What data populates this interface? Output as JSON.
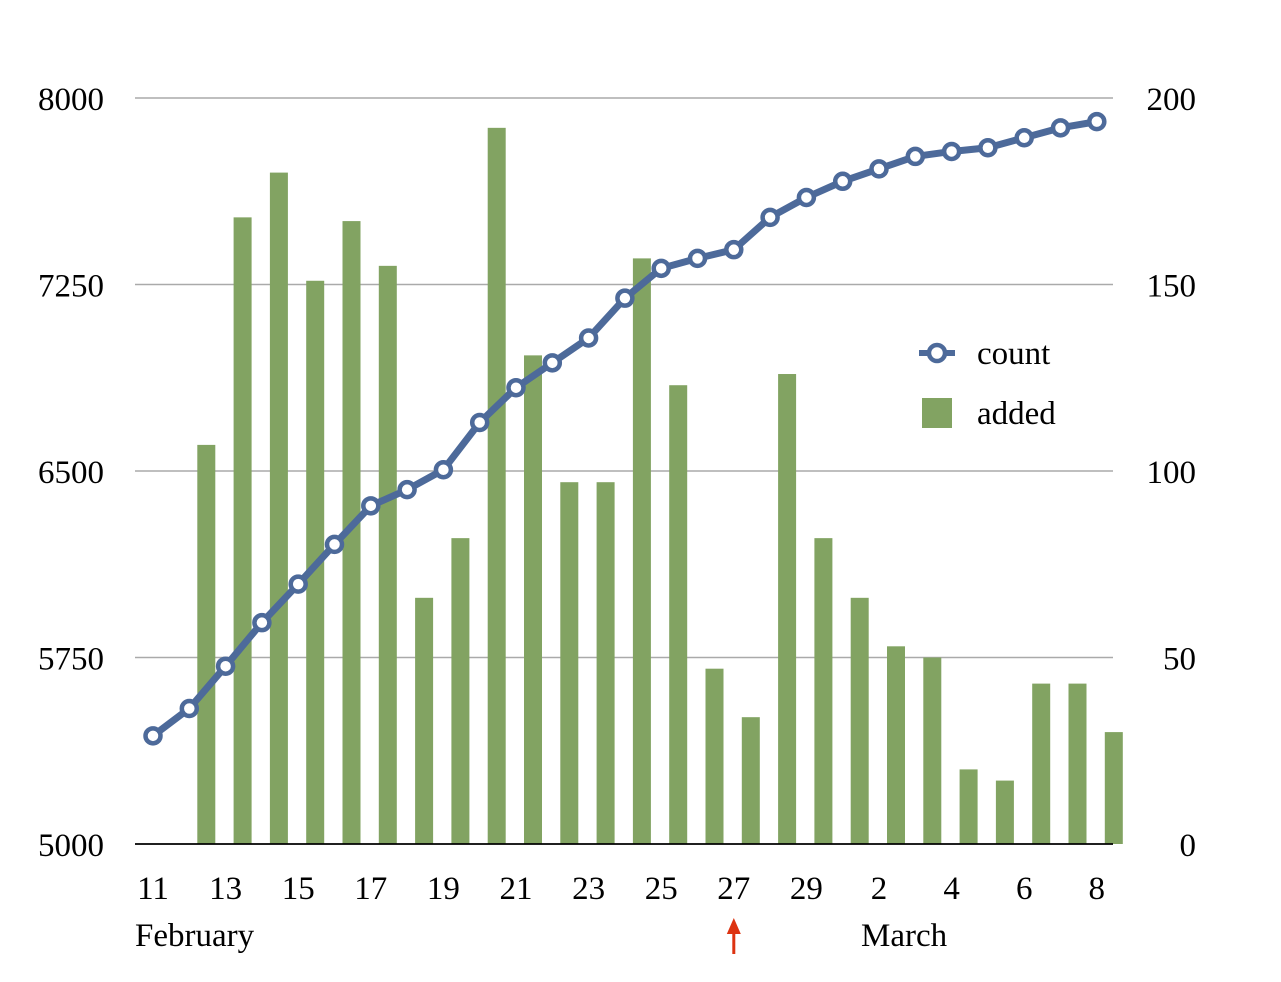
{
  "chart_data": {
    "type": "bar+line",
    "title": "",
    "colors": {
      "count": "#4d6a9a",
      "added": "#82a362",
      "marker": "#dd3311",
      "grid": "#aaaaaa",
      "axis": "#000000"
    },
    "x": [
      "11",
      "12",
      "13",
      "14",
      "15",
      "16",
      "17",
      "18",
      "19",
      "20",
      "21",
      "22",
      "23",
      "24",
      "25",
      "26",
      "27",
      "28",
      "29",
      "1",
      "2",
      "3",
      "4",
      "5",
      "6",
      "7",
      "8"
    ],
    "x_tick_labels": [
      "11",
      "13",
      "15",
      "17",
      "19",
      "21",
      "23",
      "25",
      "27",
      "29",
      "2",
      "4",
      "6",
      "8"
    ],
    "month_labels": [
      {
        "label": "February",
        "x": "11"
      },
      {
        "label": "March",
        "x": "2"
      }
    ],
    "highlight": {
      "x": "27",
      "icon": "up-arrow-icon"
    },
    "y_left": {
      "min": 5000,
      "max": 8000,
      "ticks": [
        "8000",
        "7250",
        "6500",
        "5750",
        "5000"
      ]
    },
    "y_right": {
      "min": 0,
      "max": 200,
      "ticks": [
        "200",
        "150",
        "100",
        "50",
        "0"
      ]
    },
    "grid": true,
    "legend": {
      "placement": "right",
      "entries": [
        "count",
        "added"
      ]
    },
    "series": [
      {
        "name": "count",
        "type": "line",
        "axis": "left",
        "values": [
          5435,
          5545,
          5715,
          5890,
          6045,
          6205,
          6360,
          6425,
          6505,
          6695,
          6835,
          6935,
          7035,
          7195,
          7315,
          7355,
          7390,
          7520,
          7600,
          7665,
          7715,
          7765,
          7785,
          7800,
          7840,
          7880,
          7905
        ]
      },
      {
        "name": "added",
        "type": "bar",
        "axis": "right",
        "values": [
          null,
          107,
          168,
          180,
          151,
          167,
          155,
          66,
          82,
          192,
          131,
          97,
          97,
          157,
          123,
          47,
          34,
          126,
          82,
          66,
          53,
          50,
          20,
          17,
          43,
          43,
          30
        ]
      }
    ]
  }
}
